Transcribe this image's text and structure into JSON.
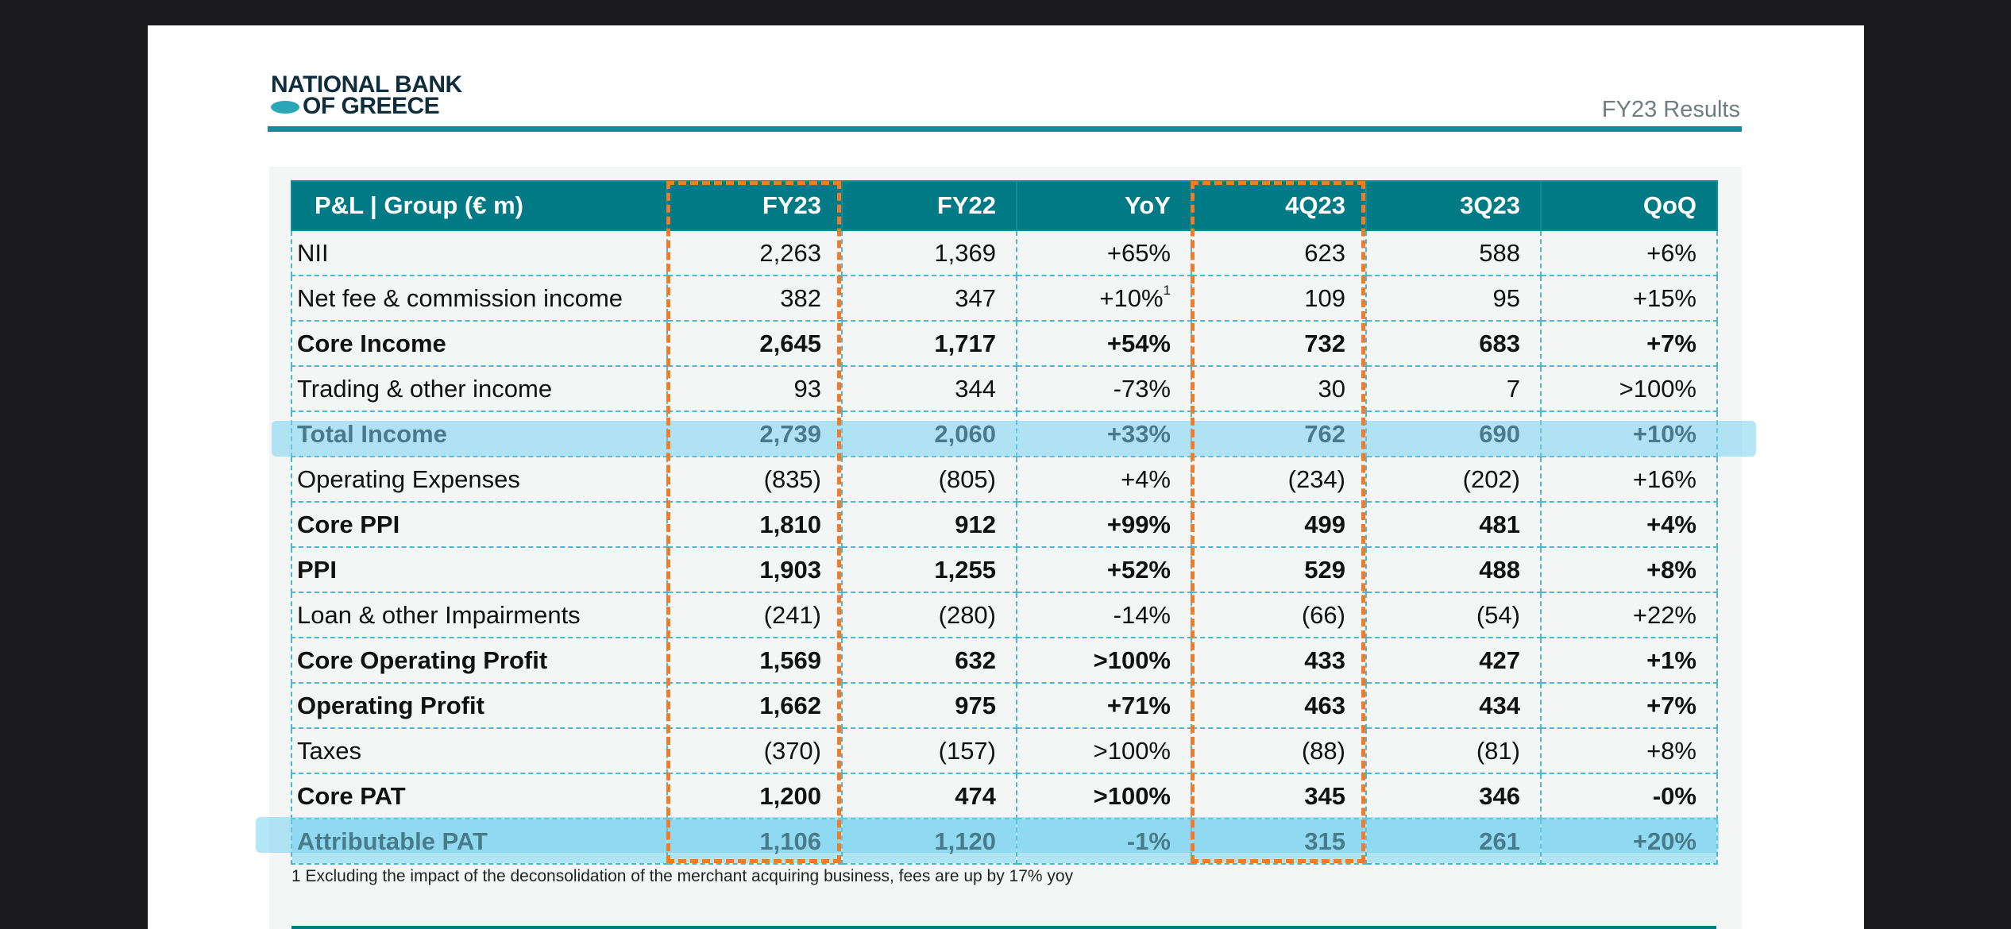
{
  "header": {
    "logo_line1": "NATIONAL BANK",
    "logo_line2": "OF GREECE",
    "report_title": "FY23 Results"
  },
  "colors": {
    "teal": "#007a85",
    "rule": "#0e8f9c",
    "highlight": "#aee4f3",
    "frame": "#f07b2a"
  },
  "table": {
    "headers": [
      "P&L | Group (€ m)",
      "FY23",
      "FY22",
      "YoY",
      "4Q23",
      "3Q23",
      "QoQ"
    ],
    "rows": [
      {
        "label": "NII",
        "fy23": "2,263",
        "fy22": "1,369",
        "yoy": "+65%",
        "q4": "623",
        "q3": "588",
        "qoq": "+6%"
      },
      {
        "label": "Net fee & commission income",
        "fy23": "382",
        "fy22": "347",
        "yoy": "+10%",
        "yoy_note": "1",
        "q4": "109",
        "q3": "95",
        "qoq": "+15%"
      },
      {
        "label": "Core Income",
        "fy23": "2,645",
        "fy22": "1,717",
        "yoy": "+54%",
        "q4": "732",
        "q3": "683",
        "qoq": "+7%"
      },
      {
        "label": "Trading & other income",
        "fy23": "93",
        "fy22": "344",
        "yoy": "-73%",
        "q4": "30",
        "q3": "7",
        "qoq": ">100%"
      },
      {
        "label": "Total Income",
        "fy23": "2,739",
        "fy22": "2,060",
        "yoy": "+33%",
        "q4": "762",
        "q3": "690",
        "qoq": "+10%"
      },
      {
        "label": "Operating Expenses",
        "fy23": "(835)",
        "fy22": "(805)",
        "yoy": "+4%",
        "q4": "(234)",
        "q3": "(202)",
        "qoq": "+16%"
      },
      {
        "label": "Core PPI",
        "fy23": "1,810",
        "fy22": "912",
        "yoy": "+99%",
        "q4": "499",
        "q3": "481",
        "qoq": "+4%"
      },
      {
        "label": "PPI",
        "fy23": "1,903",
        "fy22": "1,255",
        "yoy": "+52%",
        "q4": "529",
        "q3": "488",
        "qoq": "+8%"
      },
      {
        "label": "Loan & other Impairments",
        "fy23": "(241)",
        "fy22": "(280)",
        "yoy": "-14%",
        "q4": "(66)",
        "q3": "(54)",
        "qoq": "+22%"
      },
      {
        "label": "Core Operating Profit",
        "fy23": "1,569",
        "fy22": "632",
        "yoy": ">100%",
        "q4": "433",
        "q3": "427",
        "qoq": "+1%"
      },
      {
        "label": "Operating Profit",
        "fy23": "1,662",
        "fy22": "975",
        "yoy": "+71%",
        "q4": "463",
        "q3": "434",
        "qoq": "+7%"
      },
      {
        "label": "Taxes",
        "fy23": "(370)",
        "fy22": "(157)",
        "yoy": ">100%",
        "q4": "(88)",
        "q3": "(81)",
        "qoq": "+8%"
      },
      {
        "label": "Core PAT",
        "fy23": "1,200",
        "fy22": "474",
        "yoy": ">100%",
        "q4": "345",
        "q3": "346",
        "qoq": "-0%"
      },
      {
        "label": "Attributable PAT",
        "fy23": "1,106",
        "fy22": "1,120",
        "yoy": "-1%",
        "q4": "315",
        "q3": "261",
        "qoq": "+20%"
      }
    ]
  },
  "footnote": "1 Excluding the impact of the deconsolidation of the merchant acquiring business, fees are up by 17% yoy"
}
